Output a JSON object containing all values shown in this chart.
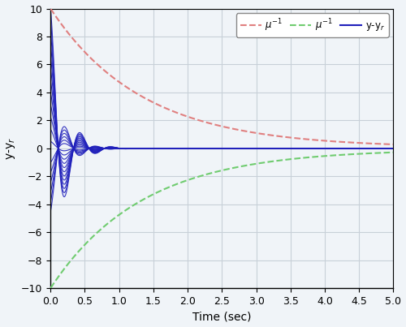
{
  "title": "",
  "xlabel": "Time (sec)",
  "ylabel": "y-y$_r$",
  "xlim": [
    0,
    5
  ],
  "ylim": [
    -10,
    10
  ],
  "xticks": [
    0,
    0.5,
    1,
    1.5,
    2,
    2.5,
    3,
    3.5,
    4,
    4.5,
    5
  ],
  "yticks": [
    -10,
    -8,
    -6,
    -4,
    -2,
    0,
    2,
    4,
    6,
    8,
    10
  ],
  "mu_pos_color": "#e08080",
  "mu_neg_color": "#70cc70",
  "traj_color": "#2020bb",
  "background_color": "#f0f4f8",
  "grid_color": "#c8d0d8",
  "rho0": 10.0,
  "rho_inf": 0.05,
  "lambda_rate": 0.75,
  "num_trajectories": 18,
  "decay": 5.0,
  "omega": 14.0,
  "t_end": 5.0,
  "t_points": 3000
}
